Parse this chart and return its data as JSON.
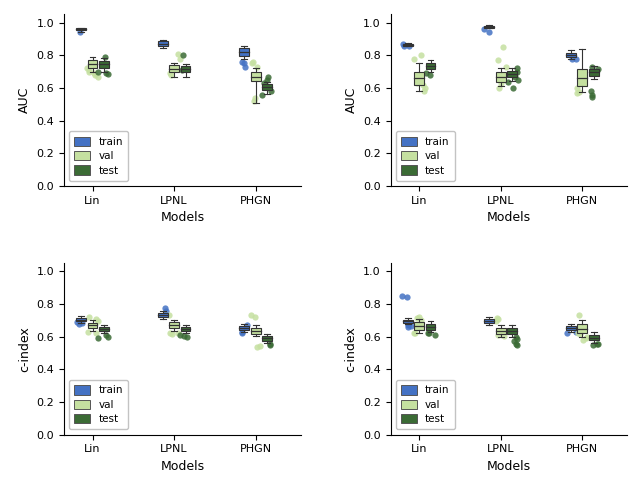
{
  "ylabels": [
    "AUC",
    "AUC",
    "c-index",
    "c-index"
  ],
  "xlabel": "Models",
  "xtick_labels": [
    "Lin",
    "LPNL",
    "PHGN"
  ],
  "ylim": [
    0.0,
    1.05
  ],
  "yticks": [
    0.0,
    0.2,
    0.4,
    0.6,
    0.8,
    1.0
  ],
  "colors": {
    "train": "#4472C4",
    "val": "#C5E0A0",
    "test": "#3B6B35"
  },
  "box_width": 0.12,
  "offsets": [
    -0.14,
    0.0,
    0.14
  ],
  "model_positions": {
    "Lin": 1,
    "LPNL": 2,
    "PHGN": 3
  },
  "subplots": [
    {
      "train": {
        "Lin": {
          "med": 0.96,
          "q1": 0.955,
          "q3": 0.965,
          "whislo": 0.945,
          "whishi": 0.97,
          "fliers": [
            0.94
          ]
        },
        "LPNL": {
          "med": 0.87,
          "q1": 0.855,
          "q3": 0.885,
          "whislo": 0.845,
          "whishi": 0.895,
          "fliers": []
        },
        "PHGN": {
          "med": 0.82,
          "q1": 0.795,
          "q3": 0.845,
          "whislo": 0.775,
          "whishi": 0.855,
          "fliers": [
            0.73,
            0.75,
            0.76
          ]
        }
      },
      "val": {
        "Lin": {
          "med": 0.745,
          "q1": 0.725,
          "q3": 0.77,
          "whislo": 0.695,
          "whishi": 0.79,
          "fliers": [
            0.67,
            0.68,
            0.69,
            0.7,
            0.71,
            0.72
          ]
        },
        "LPNL": {
          "med": 0.715,
          "q1": 0.695,
          "q3": 0.74,
          "whislo": 0.67,
          "whishi": 0.755,
          "fliers": [
            0.78,
            0.81,
            0.68,
            0.69
          ]
        },
        "PHGN": {
          "med": 0.67,
          "q1": 0.645,
          "q3": 0.695,
          "whislo": 0.51,
          "whishi": 0.72,
          "fliers": [
            0.73,
            0.75,
            0.76,
            0.52,
            0.54
          ]
        }
      },
      "test": {
        "Lin": {
          "med": 0.745,
          "q1": 0.72,
          "q3": 0.765,
          "whislo": 0.695,
          "whishi": 0.785,
          "fliers": [
            0.685,
            0.79,
            0.69,
            0.7
          ]
        },
        "LPNL": {
          "med": 0.715,
          "q1": 0.695,
          "q3": 0.735,
          "whislo": 0.665,
          "whishi": 0.745,
          "fliers": [
            0.71,
            0.8
          ]
        },
        "PHGN": {
          "med": 0.605,
          "q1": 0.585,
          "q3": 0.625,
          "whislo": 0.565,
          "whishi": 0.635,
          "fliers": [
            0.58,
            0.63,
            0.65,
            0.67,
            0.56
          ]
        }
      }
    },
    {
      "train": {
        "Lin": {
          "med": 0.865,
          "q1": 0.86,
          "q3": 0.87,
          "whislo": 0.855,
          "whishi": 0.875,
          "fliers": [
            0.855,
            0.86,
            0.87
          ]
        },
        "LPNL": {
          "med": 0.975,
          "q1": 0.97,
          "q3": 0.98,
          "whislo": 0.965,
          "whishi": 0.985,
          "fliers": [
            0.945,
            0.96
          ]
        },
        "PHGN": {
          "med": 0.8,
          "q1": 0.79,
          "q3": 0.815,
          "whislo": 0.775,
          "whishi": 0.83,
          "fliers": [
            0.775,
            0.78
          ]
        }
      },
      "val": {
        "Lin": {
          "med": 0.66,
          "q1": 0.62,
          "q3": 0.695,
          "whislo": 0.58,
          "whishi": 0.755,
          "fliers": [
            0.58,
            0.6,
            0.62,
            0.63,
            0.775,
            0.8
          ]
        },
        "LPNL": {
          "med": 0.665,
          "q1": 0.635,
          "q3": 0.695,
          "whislo": 0.61,
          "whishi": 0.72,
          "fliers": [
            0.73,
            0.77,
            0.85,
            0.6,
            0.63
          ]
        },
        "PHGN": {
          "med": 0.66,
          "q1": 0.615,
          "q3": 0.715,
          "whislo": 0.575,
          "whishi": 0.84,
          "fliers": [
            0.57,
            0.575,
            0.6
          ]
        }
      },
      "test": {
        "Lin": {
          "med": 0.735,
          "q1": 0.715,
          "q3": 0.755,
          "whislo": 0.7,
          "whishi": 0.77,
          "fliers": [
            0.68,
            0.69
          ]
        },
        "LPNL": {
          "med": 0.685,
          "q1": 0.665,
          "q3": 0.705,
          "whislo": 0.645,
          "whishi": 0.72,
          "fliers": [
            0.6,
            0.635,
            0.65,
            0.67,
            0.695,
            0.72
          ]
        },
        "PHGN": {
          "med": 0.695,
          "q1": 0.675,
          "q3": 0.715,
          "whislo": 0.655,
          "whishi": 0.735,
          "fliers": [
            0.545,
            0.56,
            0.58,
            0.715,
            0.73
          ]
        }
      }
    },
    {
      "train": {
        "Lin": {
          "med": 0.705,
          "q1": 0.695,
          "q3": 0.715,
          "whislo": 0.685,
          "whishi": 0.725,
          "fliers": [
            0.675,
            0.685,
            0.69
          ]
        },
        "LPNL": {
          "med": 0.73,
          "q1": 0.718,
          "q3": 0.742,
          "whislo": 0.708,
          "whishi": 0.755,
          "fliers": [
            0.775,
            0.76
          ]
        },
        "PHGN": {
          "med": 0.655,
          "q1": 0.643,
          "q3": 0.667,
          "whislo": 0.631,
          "whishi": 0.679,
          "fliers": [
            0.625,
            0.63,
            0.67
          ]
        }
      },
      "val": {
        "Lin": {
          "med": 0.67,
          "q1": 0.653,
          "q3": 0.685,
          "whislo": 0.635,
          "whishi": 0.7,
          "fliers": [
            0.625,
            0.63,
            0.695,
            0.71,
            0.72
          ]
        },
        "LPNL": {
          "med": 0.67,
          "q1": 0.653,
          "q3": 0.69,
          "whislo": 0.635,
          "whishi": 0.7,
          "fliers": [
            0.73,
            0.615,
            0.62,
            0.625
          ]
        },
        "PHGN": {
          "med": 0.635,
          "q1": 0.618,
          "q3": 0.655,
          "whislo": 0.606,
          "whishi": 0.672,
          "fliers": [
            0.535,
            0.54,
            0.72,
            0.73
          ]
        }
      },
      "test": {
        "Lin": {
          "med": 0.645,
          "q1": 0.633,
          "q3": 0.658,
          "whislo": 0.621,
          "whishi": 0.671,
          "fliers": [
            0.595,
            0.6,
            0.608
          ]
        },
        "LPNL": {
          "med": 0.645,
          "q1": 0.633,
          "q3": 0.657,
          "whislo": 0.621,
          "whishi": 0.669,
          "fliers": [
            0.598,
            0.605,
            0.61
          ]
        },
        "PHGN": {
          "med": 0.59,
          "q1": 0.576,
          "q3": 0.604,
          "whislo": 0.562,
          "whishi": 0.618,
          "fliers": [
            0.552,
            0.558
          ]
        }
      }
    },
    {
      "train": {
        "Lin": {
          "med": 0.695,
          "q1": 0.685,
          "q3": 0.705,
          "whislo": 0.675,
          "whishi": 0.715,
          "fliers": [
            0.66,
            0.665,
            0.67,
            0.675,
            0.84,
            0.85
          ]
        },
        "LPNL": {
          "med": 0.695,
          "q1": 0.683,
          "q3": 0.707,
          "whislo": 0.671,
          "whishi": 0.719,
          "fliers": []
        },
        "PHGN": {
          "med": 0.655,
          "q1": 0.643,
          "q3": 0.667,
          "whislo": 0.631,
          "whishi": 0.679,
          "fliers": [
            0.623,
            0.63
          ]
        }
      },
      "val": {
        "Lin": {
          "med": 0.665,
          "q1": 0.643,
          "q3": 0.687,
          "whislo": 0.621,
          "whishi": 0.709,
          "fliers": [
            0.62,
            0.625,
            0.705,
            0.715,
            0.72
          ]
        },
        "LPNL": {
          "med": 0.635,
          "q1": 0.618,
          "q3": 0.655,
          "whislo": 0.601,
          "whishi": 0.672,
          "fliers": [
            0.605,
            0.61,
            0.695,
            0.71,
            0.715
          ]
        },
        "PHGN": {
          "med": 0.65,
          "q1": 0.623,
          "q3": 0.677,
          "whislo": 0.596,
          "whishi": 0.704,
          "fliers": [
            0.58,
            0.59,
            0.6,
            0.615,
            0.625,
            0.73
          ]
        }
      },
      "test": {
        "Lin": {
          "med": 0.66,
          "q1": 0.643,
          "q3": 0.677,
          "whislo": 0.626,
          "whishi": 0.694,
          "fliers": [
            0.612,
            0.62,
            0.625
          ]
        },
        "LPNL": {
          "med": 0.635,
          "q1": 0.618,
          "q3": 0.652,
          "whislo": 0.601,
          "whishi": 0.669,
          "fliers": [
            0.548,
            0.558,
            0.572,
            0.588,
            0.6
          ]
        },
        "PHGN": {
          "med": 0.595,
          "q1": 0.578,
          "q3": 0.612,
          "whislo": 0.561,
          "whishi": 0.629,
          "fliers": [
            0.548,
            0.554,
            0.558
          ]
        }
      }
    }
  ]
}
